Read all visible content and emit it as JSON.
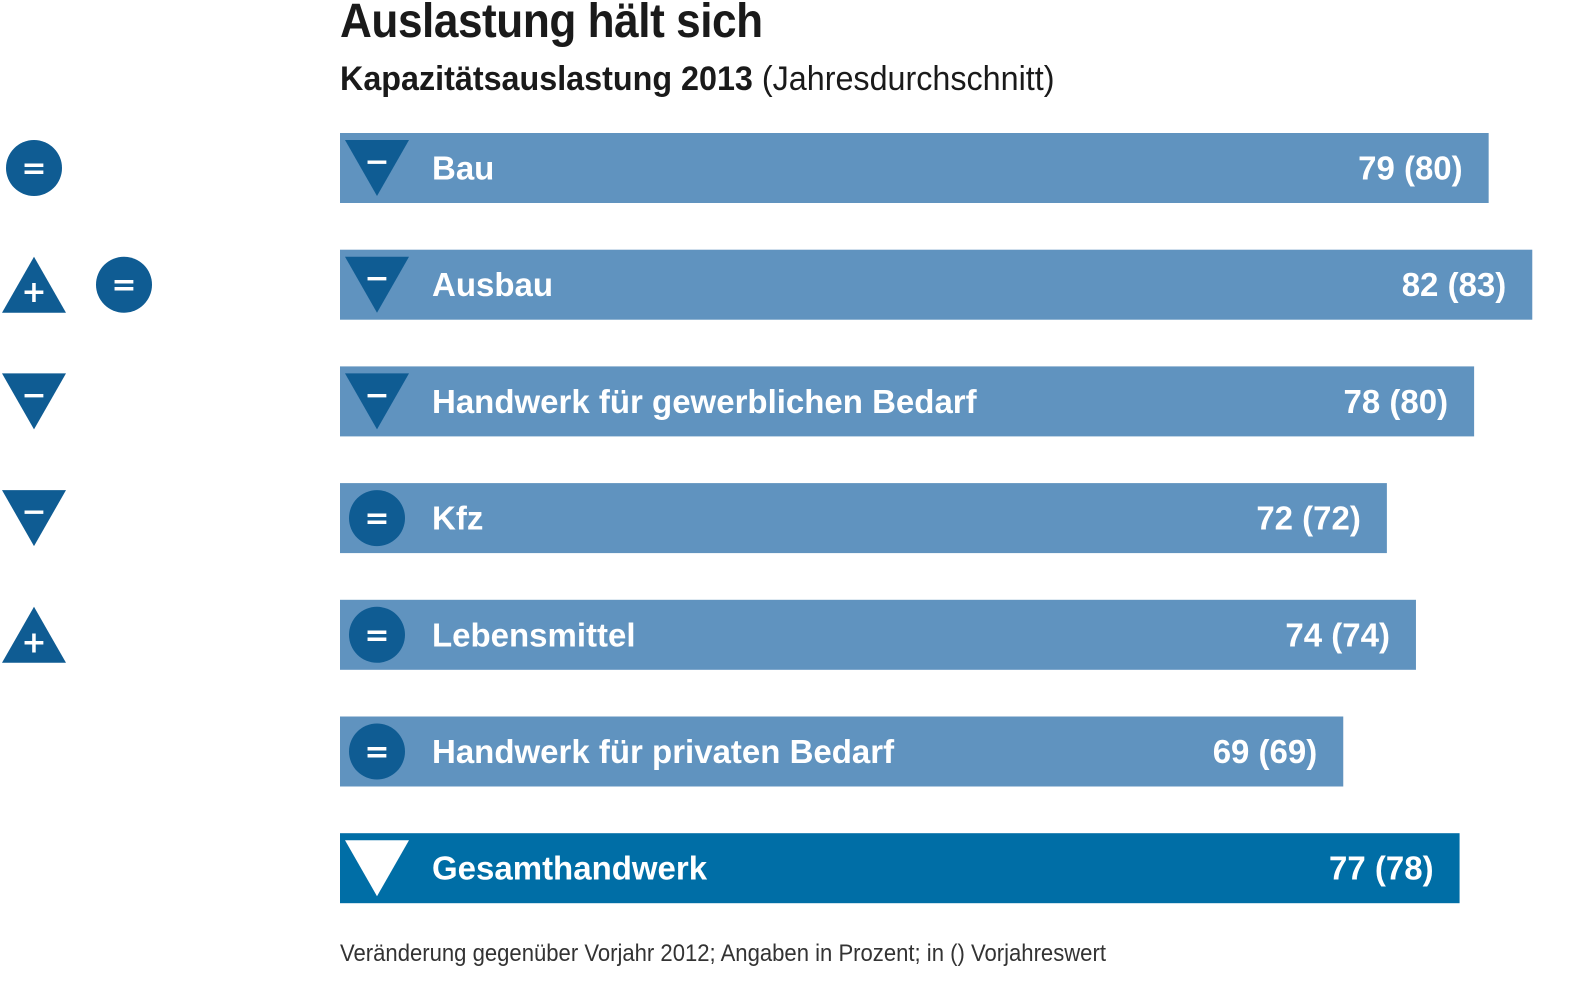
{
  "chart_data": {
    "type": "bar",
    "orientation": "horizontal",
    "title": "Auslastung hält sich",
    "subtitle_bold": "Kapazitätsauslastung 2013",
    "subtitle_normal": "(Jahresdurchschnitt)",
    "footnote": "Veränderung gegenüber Vorjahr 2012; Angaben in Prozent; in () Vorjahreswert",
    "unit": "%",
    "categories": [
      "Bau",
      "Ausbau",
      "Handwerk für gewerblichen Bedarf",
      "Kfz",
      "Lebensmittel",
      "Handwerk für privaten Bedarf",
      "Gesamthandwerk"
    ],
    "values": [
      79,
      82,
      78,
      72,
      74,
      69,
      77
    ],
    "previous_year_values": [
      80,
      83,
      80,
      72,
      74,
      69,
      78
    ],
    "value_labels": [
      "79  (80)",
      "82  (83)",
      "78 (80)",
      "72  (72)",
      "74  (74)",
      "69  (69)",
      "77 (78)"
    ],
    "change_vs_previous_year": [
      "minus",
      "minus",
      "minus",
      "equal",
      "equal",
      "equal",
      "minus"
    ],
    "outlook_symbols": [
      [
        "equal"
      ],
      [
        "plus",
        "equal"
      ],
      [
        "minus"
      ],
      [
        "minus"
      ],
      [
        "plus"
      ],
      [],
      []
    ],
    "highlight_category": "Gesamthandwerk",
    "xlim": [
      0,
      82
    ]
  },
  "symbol_glyphs": {
    "plus": "+",
    "minus": "−",
    "equal": "="
  },
  "colors": {
    "bar": "#6093bf",
    "bar_total": "#006ea6",
    "symbol_dark": "#0f5c93",
    "symbol_on_total": "#ffffff",
    "text_dark": "#1a1a1a"
  }
}
